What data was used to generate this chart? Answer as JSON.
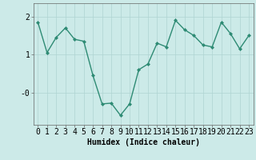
{
  "x": [
    0,
    1,
    2,
    3,
    4,
    5,
    6,
    7,
    8,
    9,
    10,
    11,
    12,
    13,
    14,
    15,
    16,
    17,
    18,
    19,
    20,
    21,
    22,
    23
  ],
  "y": [
    1.85,
    1.05,
    1.45,
    1.7,
    1.4,
    1.35,
    0.45,
    -0.3,
    -0.28,
    -0.6,
    -0.3,
    0.6,
    0.75,
    1.3,
    1.2,
    1.9,
    1.65,
    1.5,
    1.25,
    1.2,
    1.85,
    1.55,
    1.15,
    1.5
  ],
  "line_color": "#2e8b74",
  "marker": "D",
  "marker_size": 2.0,
  "bg_color": "#cceae8",
  "grid_color": "#aed4d2",
  "xlabel": "Humidex (Indice chaleur)",
  "ylim": [
    -0.85,
    2.35
  ],
  "xlim": [
    -0.5,
    23.5
  ],
  "xlabel_fontsize": 7,
  "tick_fontsize": 7,
  "linewidth": 1.0
}
